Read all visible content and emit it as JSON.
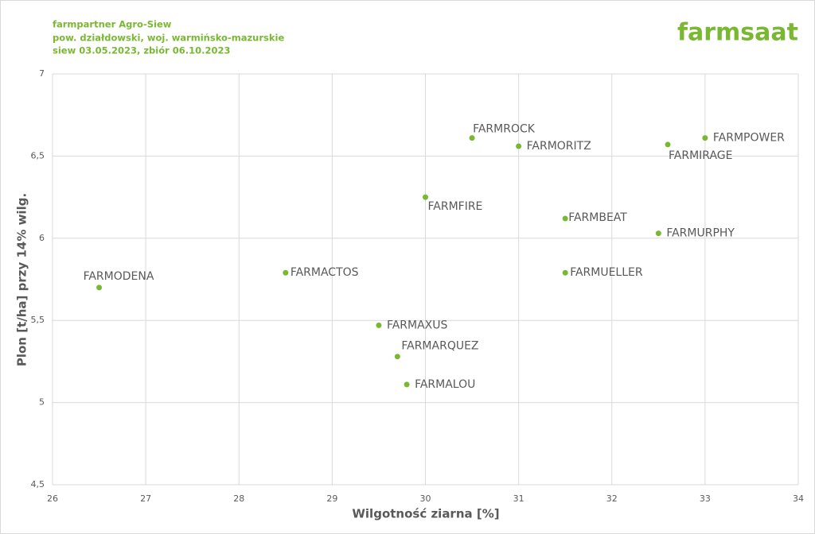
{
  "header": {
    "lines": [
      "farmpartner Agro-Siew",
      "pow. działdowski, woj. warmińsko-mazurskie",
      "siew 03.05.2023, zbiór 06.10.2023"
    ],
    "brand": "farmsaat"
  },
  "chart_data": {
    "type": "scatter",
    "x_label": "Wilgotność ziarna [%]",
    "y_label": "Plon [t/ha] przy 14% wilg.",
    "point_labels": [
      "FARMODENA",
      "FARMACTOS",
      "FARMAXUS",
      "FARMARQUEZ",
      "FARMALOU",
      "FARMFIRE",
      "FARMROCK",
      "FARMORITZ",
      "FARMBEAT",
      "FARMUELLER",
      "FARMURPHY",
      "FARMIRAGE",
      "FARMPOWER"
    ],
    "x": [
      26.5,
      28.5,
      29.5,
      29.7,
      29.8,
      30.0,
      30.5,
      31.0,
      31.5,
      31.5,
      32.5,
      32.6,
      33.0
    ],
    "values": [
      5.7,
      5.79,
      5.47,
      5.28,
      5.11,
      6.25,
      6.61,
      6.56,
      6.12,
      5.79,
      6.03,
      6.57,
      6.61
    ],
    "color": "#7ab833",
    "xlim": [
      26,
      34
    ],
    "xticks": [
      26,
      27,
      28,
      29,
      30,
      31,
      32,
      33,
      34
    ],
    "ylim": [
      4.5,
      7
    ],
    "yticks": [
      {
        "value": 4.5,
        "label": "4,5"
      },
      5,
      {
        "value": 5.5,
        "label": "5,5"
      },
      6,
      {
        "value": 6.5,
        "label": "6,5"
      },
      7
    ],
    "grid": true
  }
}
